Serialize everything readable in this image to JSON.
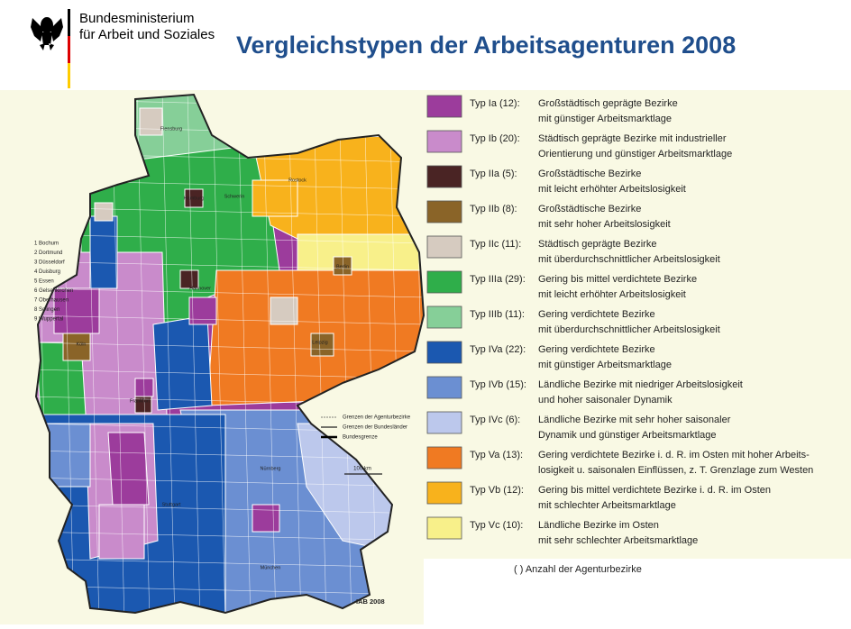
{
  "header": {
    "ministry_line1": "Bundesministerium",
    "ministry_line2": "für Arbeit und Soziales",
    "title": "Vergleichstypen der Arbeitsagenturen 2008"
  },
  "legend": {
    "items": [
      {
        "label": "Typ Ia (12):",
        "line1": "Großstädtisch geprägte Bezirke",
        "line2": "mit günstiger Arbeitsmarktlage",
        "color": "#9c3c9c"
      },
      {
        "label": "Typ Ib (20):",
        "line1": "Städtisch geprägte Bezirke mit industrieller",
        "line2": "Orientierung und günstiger Arbeitsmarktlage",
        "color": "#c98bcb"
      },
      {
        "label": "Typ IIa (5):",
        "line1": "Großstädtische Bezirke",
        "line2": "mit leicht erhöhter Arbeitslosigkeit",
        "color": "#4a2424"
      },
      {
        "label": "Typ IIb (8):",
        "line1": "Großstädtische Bezirke",
        "line2": "mit sehr hoher Arbeitslosigkeit",
        "color": "#8a6428"
      },
      {
        "label": "Typ IIc (11):",
        "line1": "Städtisch geprägte Bezirke",
        "line2": "mit überdurchschnittlicher Arbeitslosigkeit",
        "color": "#d6cbc0"
      },
      {
        "label": "Typ IIIa (29):",
        "line1": "Gering bis mittel verdichtete Bezirke",
        "line2": "mit leicht erhöhter Arbeitslosigkeit",
        "color": "#2fae4a"
      },
      {
        "label": "Typ IIIb (11):",
        "line1": "Gering verdichtete Bezirke",
        "line2": "mit überdurchschnittlicher Arbeitslosigkeit",
        "color": "#86cf98"
      },
      {
        "label": "Typ IVa (22):",
        "line1": "Gering verdichtete Bezirke",
        "line2": "mit günstiger Arbeitsmarktlage",
        "color": "#1b58b0"
      },
      {
        "label": "Typ IVb (15):",
        "line1": "Ländliche Bezirke mit niedriger Arbeitslosigkeit",
        "line2": "und hoher saisonaler Dynamik",
        "color": "#6b8fd2"
      },
      {
        "label": "Typ IVc (6):",
        "line1": "Ländliche Bezirke mit sehr hoher saisonaler",
        "line2": "Dynamik und günstiger Arbeitsmarktlage",
        "color": "#bcc8ec"
      },
      {
        "label": "Typ Va (13):",
        "line1": "Gering verdichtete Bezirke i. d. R. im Osten mit hoher Arbeits-",
        "line2": "losigkeit u. saisonalen Einflüssen, z. T. Grenzlage zum Westen",
        "color": "#f07a22"
      },
      {
        "label": "Typ Vb (12):",
        "line1": "Gering bis mittel verdichtete Bezirke i. d. R. im Osten",
        "line2": "mit schlechter Arbeitsmarktlage",
        "color": "#f8b21c"
      },
      {
        "label": "Typ Vc (10):",
        "line1": "Ländliche Bezirke im Osten",
        "line2": "mit sehr schlechter Arbeitsmarktlage",
        "color": "#f8f08a"
      }
    ]
  },
  "note": "( ) Anzahl der Agenturbezirke",
  "map": {
    "city_list": [
      "1 Bochum",
      "2 Dortmund",
      "3 Düsseldorf",
      "4 Duisburg",
      "5 Essen",
      "6 Gelsenkirchen",
      "7 Oberhausen",
      "8 Solingen",
      "9 Wuppertal"
    ],
    "boundaries": [
      "Grenzen der Agenturbezirke",
      "Grenzen der Bundesländer",
      "Bundesgrenze"
    ],
    "scale": "100 km",
    "source": "IAB 2008",
    "places": [
      "Flensburg",
      "Hamburg",
      "Schwerin",
      "Rostock",
      "Berlin",
      "Hannover",
      "Leipzig",
      "Frankfurt",
      "Nürnberg",
      "München",
      "Stuttgart",
      "Köln"
    ]
  }
}
